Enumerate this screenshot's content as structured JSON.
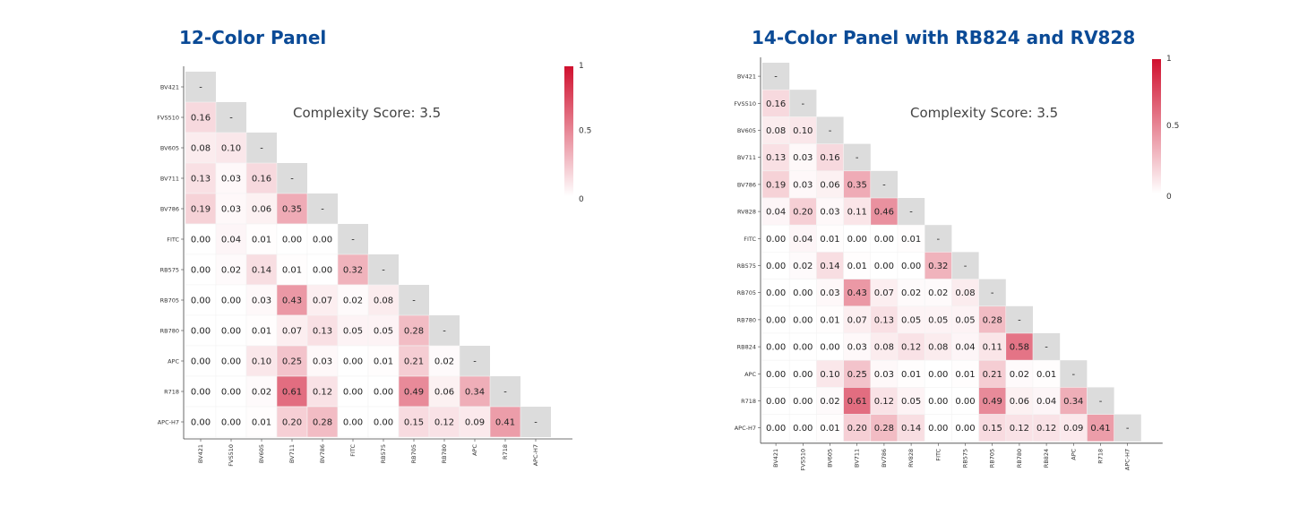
{
  "chart_data": [
    {
      "type": "heatmap",
      "title": "12-Color Panel",
      "annotation": "Complexity Score: 3.5",
      "labels": [
        "BV421",
        "FVS510",
        "BV605",
        "BV711",
        "BV786",
        "FITC",
        "RB575",
        "RB705",
        "RB780",
        "APC",
        "R718",
        "APC-H7"
      ],
      "lower_triangle": [
        [],
        [
          0.16
        ],
        [
          0.08,
          0.1
        ],
        [
          0.13,
          0.03,
          0.16
        ],
        [
          0.19,
          0.03,
          0.06,
          0.35
        ],
        [
          0.0,
          0.04,
          0.01,
          0.0,
          0.0
        ],
        [
          0.0,
          0.02,
          0.14,
          0.01,
          0.0,
          0.32
        ],
        [
          0.0,
          0.0,
          0.03,
          0.43,
          0.07,
          0.02,
          0.08
        ],
        [
          0.0,
          0.0,
          0.01,
          0.07,
          0.13,
          0.05,
          0.05,
          0.28
        ],
        [
          0.0,
          0.0,
          0.1,
          0.25,
          0.03,
          0.0,
          0.01,
          0.21,
          0.02
        ],
        [
          0.0,
          0.0,
          0.02,
          0.61,
          0.12,
          0.0,
          0.0,
          0.49,
          0.06,
          0.34
        ],
        [
          0.0,
          0.0,
          0.01,
          0.2,
          0.28,
          0.0,
          0.0,
          0.15,
          0.12,
          0.09,
          0.41
        ]
      ],
      "diagonal_label": "-",
      "colorbar": {
        "min_label": "0",
        "mid_label": "0.5",
        "max_label": "1",
        "range": [
          0,
          1
        ]
      },
      "colors": {
        "high": "#d0102e",
        "low": "#ffffff",
        "diagonal": "#dcdcdc"
      }
    },
    {
      "type": "heatmap",
      "title": "14-Color Panel with RB824 and RV828",
      "annotation": "Complexity Score: 3.5",
      "labels": [
        "BV421",
        "FVS510",
        "BV605",
        "BV711",
        "BV786",
        "RV828",
        "FITC",
        "RB575",
        "RB705",
        "RB780",
        "RB824",
        "APC",
        "R718",
        "APC-H7"
      ],
      "lower_triangle": [
        [],
        [
          0.16
        ],
        [
          0.08,
          0.1
        ],
        [
          0.13,
          0.03,
          0.16
        ],
        [
          0.19,
          0.03,
          0.06,
          0.35
        ],
        [
          0.04,
          0.2,
          0.03,
          0.11,
          0.46
        ],
        [
          0.0,
          0.04,
          0.01,
          0.0,
          0.0,
          0.01
        ],
        [
          0.0,
          0.02,
          0.14,
          0.01,
          0.0,
          0.0,
          0.32
        ],
        [
          0.0,
          0.0,
          0.03,
          0.43,
          0.07,
          0.02,
          0.02,
          0.08
        ],
        [
          0.0,
          0.0,
          0.01,
          0.07,
          0.13,
          0.05,
          0.05,
          0.05,
          0.28
        ],
        [
          0.0,
          0.0,
          0.0,
          0.03,
          0.08,
          0.12,
          0.08,
          0.04,
          0.11,
          0.58
        ],
        [
          0.0,
          0.0,
          0.1,
          0.25,
          0.03,
          0.01,
          0.0,
          0.01,
          0.21,
          0.02,
          0.01
        ],
        [
          0.0,
          0.0,
          0.02,
          0.61,
          0.12,
          0.05,
          0.0,
          0.0,
          0.49,
          0.06,
          0.04,
          0.34
        ],
        [
          0.0,
          0.0,
          0.01,
          0.2,
          0.28,
          0.14,
          0.0,
          0.0,
          0.15,
          0.12,
          0.12,
          0.09,
          0.41
        ]
      ],
      "diagonal_label": "-",
      "colorbar": {
        "min_label": "0",
        "mid_label": "0.5",
        "max_label": "1",
        "range": [
          0,
          1
        ]
      },
      "colors": {
        "high": "#d0102e",
        "low": "#ffffff",
        "diagonal": "#dcdcdc"
      }
    }
  ]
}
